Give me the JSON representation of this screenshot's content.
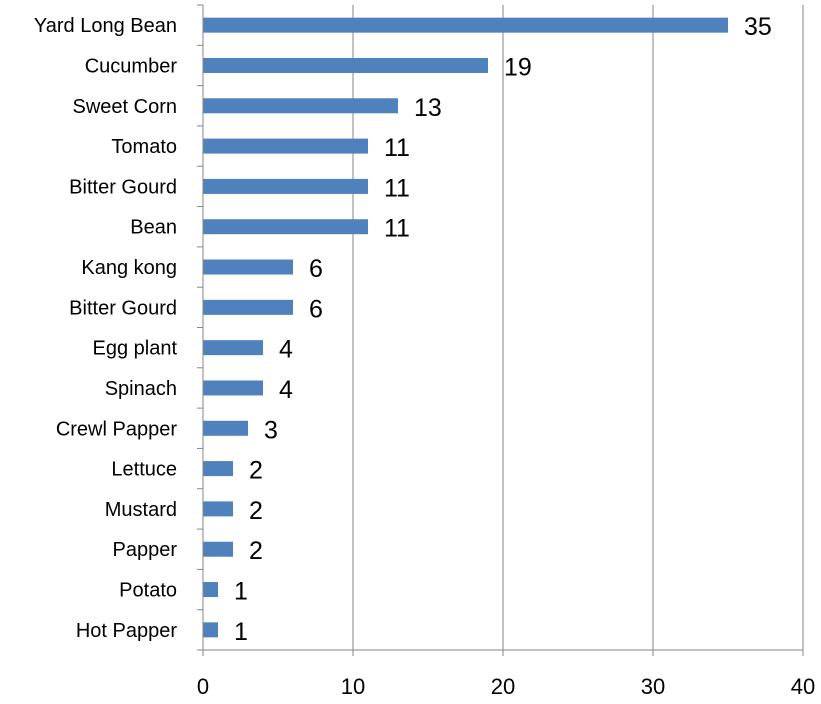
{
  "chart_data": {
    "type": "bar",
    "orientation": "horizontal",
    "title": "",
    "xlabel": "",
    "ylabel": "",
    "categories": [
      "Yard Long Bean",
      "Cucumber",
      "Sweet Corn",
      "Tomato",
      "Bitter Gourd",
      "Bean",
      "Kang kong",
      "Bitter Gourd",
      "Egg plant",
      "Spinach",
      "Crewl Papper",
      "Lettuce",
      "Mustard",
      "Papper",
      "Potato",
      "Hot Papper"
    ],
    "values": [
      35,
      19,
      13,
      11,
      11,
      11,
      6,
      6,
      4,
      4,
      3,
      2,
      2,
      2,
      1,
      1
    ],
    "xlim": [
      0,
      40
    ],
    "xticks": [
      0,
      10,
      20,
      30,
      40
    ],
    "grid": "vertical major gridlines",
    "legend": "none",
    "bar_color": "#4F81BD",
    "grid_color": "#868686",
    "axis_color": "#868686"
  }
}
